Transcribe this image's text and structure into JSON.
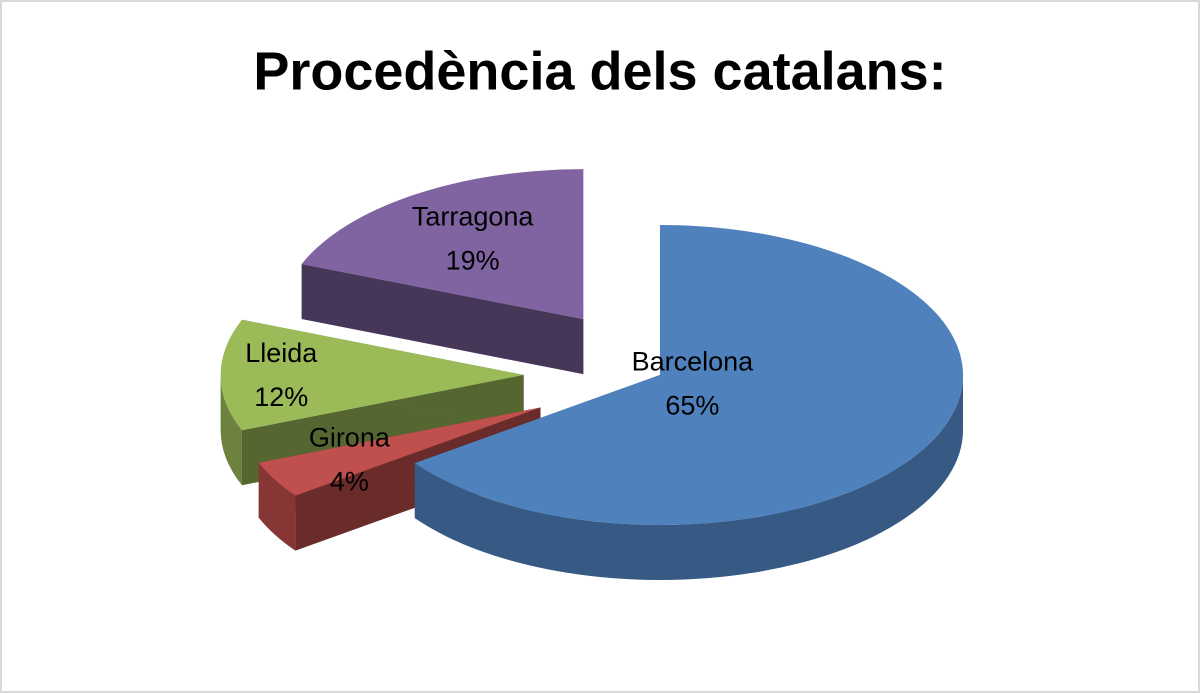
{
  "chart_data": {
    "type": "pie",
    "title": "Procedència dels catalans:",
    "categories": [
      "Barcelona",
      "Girona",
      "Lleida",
      "Tarragona"
    ],
    "values": [
      65,
      4,
      12,
      19
    ],
    "value_labels": [
      "65%",
      "4%",
      "12%",
      "19%"
    ],
    "colors": [
      "#4f81bd",
      "#c0504d",
      "#9bbb59",
      "#8064a2"
    ]
  }
}
